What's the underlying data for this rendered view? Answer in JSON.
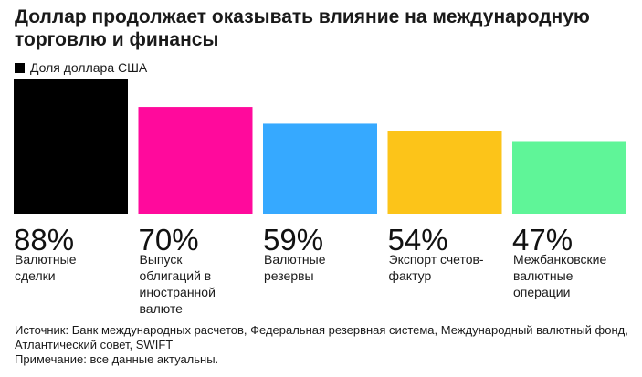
{
  "chart_data": {
    "type": "bar",
    "title": "Доллар продолжает оказывать влияние на международную торговлю и финансы",
    "legend": "Доля доллара США",
    "categories": [
      "Валютные сделки",
      "Выпуск облигаций в иностранной валюте",
      "Валютные резервы",
      "Экспорт счетов-фактур",
      "Межбанковские валютные операции"
    ],
    "category_lines": [
      [
        "Валютные",
        "сделки"
      ],
      [
        "Выпуск",
        "облигаций в",
        "иностранной",
        "валюте"
      ],
      [
        "Валютные",
        "резервы"
      ],
      [
        "Экспорт счетов-",
        "фактур"
      ],
      [
        "Межбанковские",
        "валютные",
        "операции"
      ]
    ],
    "values": [
      88,
      70,
      59,
      54,
      47
    ],
    "value_labels": [
      "88%",
      "70%",
      "59%",
      "54%",
      "47%"
    ],
    "colors": [
      "#000000",
      "#ff0a9c",
      "#36a9ff",
      "#fcc419",
      "#5ff598"
    ],
    "unit": "%",
    "ylim": [
      0,
      88
    ]
  },
  "footer": {
    "source": "Источник: Банк международных расчетов, Федеральная резервная система, Международный валютный фонд, Атлантический совет, SWIFT",
    "note": "Примечание: все данные актуальны."
  }
}
